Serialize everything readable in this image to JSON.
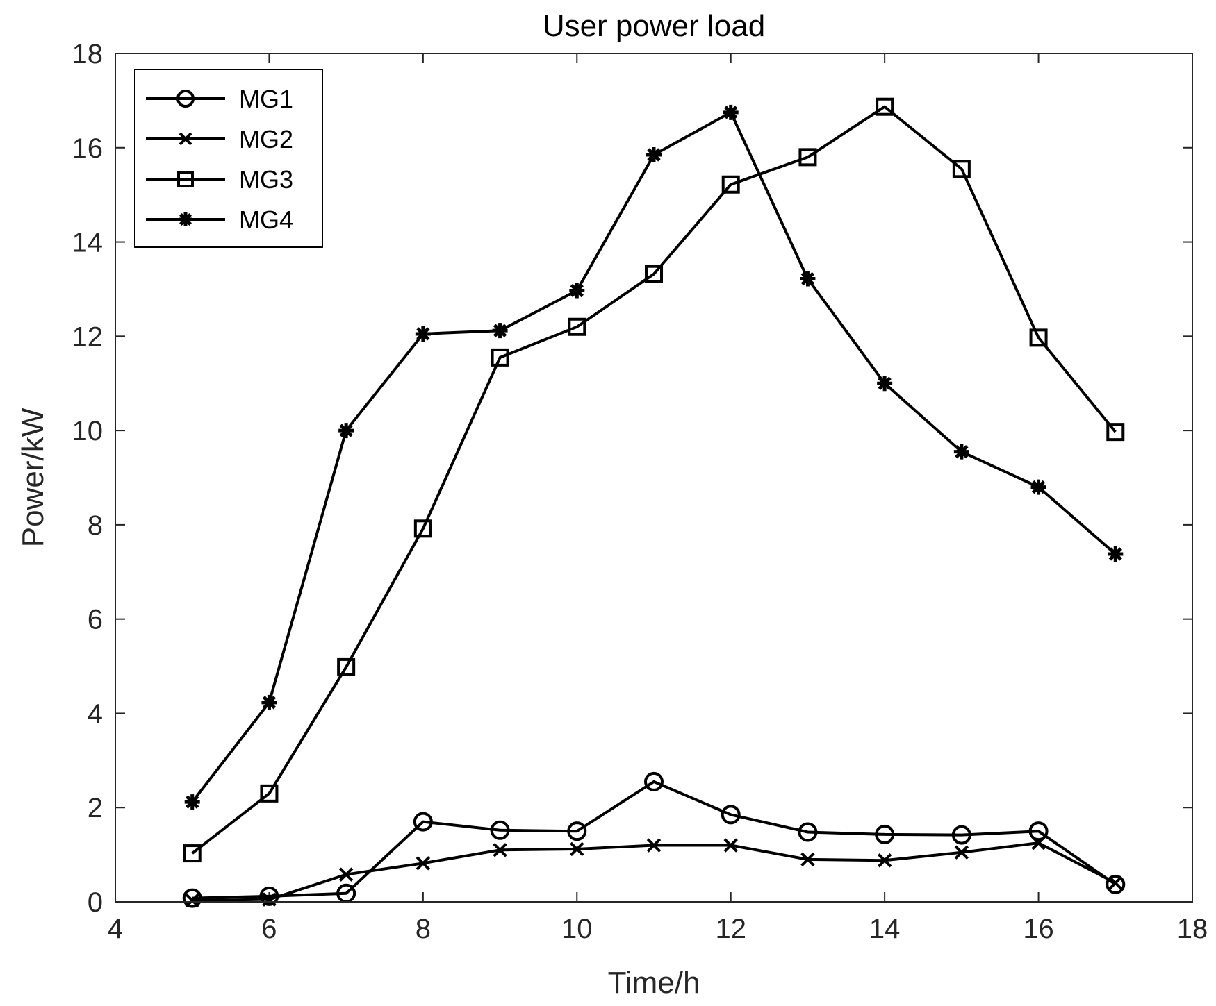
{
  "chart_data": {
    "type": "line",
    "title": "User power load",
    "xlabel": "Time/h",
    "ylabel": "Power/kW",
    "xlim": [
      4,
      18
    ],
    "ylim": [
      0,
      18
    ],
    "xticks": [
      4,
      6,
      8,
      10,
      12,
      14,
      16,
      18
    ],
    "yticks": [
      0,
      2,
      4,
      6,
      8,
      10,
      12,
      14,
      16,
      18
    ],
    "grid": false,
    "legend_position": "top-left",
    "x": [
      5,
      6,
      7,
      8,
      9,
      10,
      11,
      12,
      13,
      14,
      15,
      16,
      17
    ],
    "series": [
      {
        "name": "MG1",
        "marker": "circle",
        "values": [
          0.08,
          0.12,
          0.18,
          1.7,
          1.52,
          1.5,
          2.55,
          1.85,
          1.48,
          1.43,
          1.42,
          1.5,
          0.37
        ]
      },
      {
        "name": "MG2",
        "marker": "x",
        "values": [
          0.03,
          0.05,
          0.58,
          0.82,
          1.1,
          1.12,
          1.2,
          1.2,
          0.9,
          0.88,
          1.05,
          1.25,
          0.4
        ]
      },
      {
        "name": "MG3",
        "marker": "square",
        "values": [
          1.03,
          2.3,
          4.98,
          7.92,
          11.55,
          12.2,
          13.32,
          15.22,
          15.8,
          16.87,
          15.55,
          11.97,
          9.97
        ]
      },
      {
        "name": "MG4",
        "marker": "star",
        "values": [
          2.12,
          4.23,
          10.0,
          12.05,
          12.12,
          12.97,
          15.85,
          16.75,
          13.22,
          11.0,
          9.55,
          8.8,
          7.38
        ]
      }
    ],
    "colors": {
      "line": "#000000",
      "axis": "#262626",
      "background": "#ffffff"
    }
  }
}
